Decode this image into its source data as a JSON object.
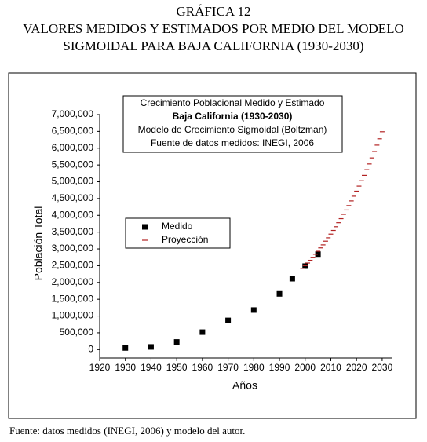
{
  "header": {
    "lines": [
      "GRÁFICA 12",
      "VALORES MEDIDOS Y ESTIMADOS POR MEDIO DEL MODELO",
      "SIGMOIDAL PARA  BAJA CALIFORNIA (1930-2030)"
    ]
  },
  "chart_data": {
    "type": "scatter",
    "info": [
      "Crecimiento Poblacional Medido y Estimado",
      "Baja California (1930-2030)",
      "Modelo de Crecimiento Sigmoidal (Boltzman)",
      "Fuente de datos medidos: INEGI, 2006"
    ],
    "x_label": "Años",
    "y_label": "Población Total",
    "xlim": [
      1920,
      2034
    ],
    "ylim": [
      -250000,
      7000000
    ],
    "xticks": [
      1920,
      1930,
      1940,
      1950,
      1960,
      1970,
      1980,
      1990,
      2000,
      2010,
      2020,
      2030
    ],
    "yticks": [
      0,
      {
        "value": 500000,
        "label": "500,000"
      },
      {
        "value": 1000000,
        "label": "1,000,000"
      },
      {
        "value": 1500000,
        "label": "1,500,000"
      },
      {
        "value": 2000000,
        "label": "2,000,000"
      },
      {
        "value": 2500000,
        "label": "2,500,000"
      },
      {
        "value": 3000000,
        "label": "3,000,000"
      },
      {
        "value": 3500000,
        "label": "3,500,000"
      },
      {
        "value": 4000000,
        "label": "4,000,000"
      },
      {
        "value": 4500000,
        "label": "4,500,000"
      },
      {
        "value": 5000000,
        "label": "5,000,000"
      },
      {
        "value": 5500000,
        "label": "5,500,000"
      },
      {
        "value": 6000000,
        "label": "6,000,000"
      },
      {
        "value": 6500000,
        "label": "6,500,000"
      },
      {
        "value": 7000000,
        "label": "7,000,000"
      }
    ],
    "series": [
      {
        "name": "Medido",
        "color": "#000000",
        "marker": "square",
        "x": [
          1930,
          1940,
          1950,
          1960,
          1970,
          1980,
          1990,
          1995,
          2000,
          2005
        ],
        "values": [
          48000,
          79000,
          227000,
          520000,
          870000,
          1178000,
          1661000,
          2112000,
          2487000,
          2844000
        ]
      },
      {
        "name": "Proyección",
        "color": "#b22222",
        "marker": "dash",
        "x": [
          1999,
          2000,
          2001,
          2002,
          2003,
          2004,
          2005,
          2006,
          2007,
          2008,
          2009,
          2010,
          2011,
          2012,
          2013,
          2014,
          2015,
          2016,
          2017,
          2018,
          2019,
          2020,
          2021,
          2022,
          2023,
          2024,
          2025,
          2026,
          2027,
          2028,
          2029,
          2030
        ],
        "values": [
          2420000,
          2500000,
          2580000,
          2660000,
          2750000,
          2840000,
          2930000,
          3030000,
          3120000,
          3230000,
          3330000,
          3440000,
          3550000,
          3660000,
          3780000,
          3900000,
          4030000,
          4160000,
          4290000,
          4430000,
          4570000,
          4720000,
          4870000,
          5030000,
          5190000,
          5360000,
          5530000,
          5710000,
          5900000,
          6090000,
          6280000,
          6490000
        ]
      }
    ]
  },
  "footer": "Fuente: datos medidos (INEGI, 2006) y modelo del autor."
}
